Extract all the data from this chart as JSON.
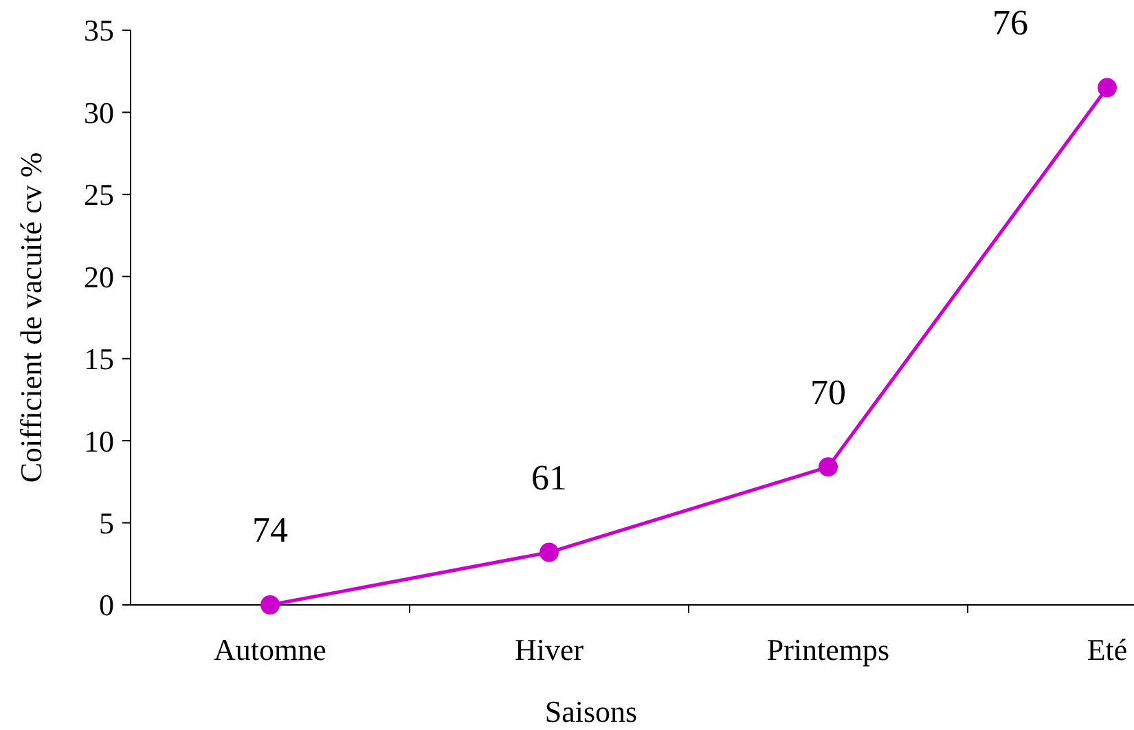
{
  "chart_data": {
    "type": "line",
    "xlabel": "Saisons",
    "ylabel": "Coifficient de vacuité cv %",
    "categories": [
      "Automne",
      "Hiver",
      "Printemps",
      "Eté"
    ],
    "series": [
      {
        "color": "#cc00cc",
        "values": [
          0,
          3.2,
          8.4,
          31.5
        ]
      }
    ],
    "ylim": [
      0,
      35
    ],
    "yticks": [
      0,
      5,
      10,
      15,
      20,
      25,
      30,
      35
    ],
    "marker": "circle",
    "line_style": "solid",
    "grid": false,
    "annotations": [
      {
        "text": "74",
        "x": "Automne",
        "y": 0
      },
      {
        "text": "61",
        "x": "Hiver",
        "y": 3.2
      },
      {
        "text": "70",
        "x": "Printemps",
        "y": 8.4
      },
      {
        "text": "76",
        "x": "Eté",
        "y": 31.5
      }
    ]
  }
}
